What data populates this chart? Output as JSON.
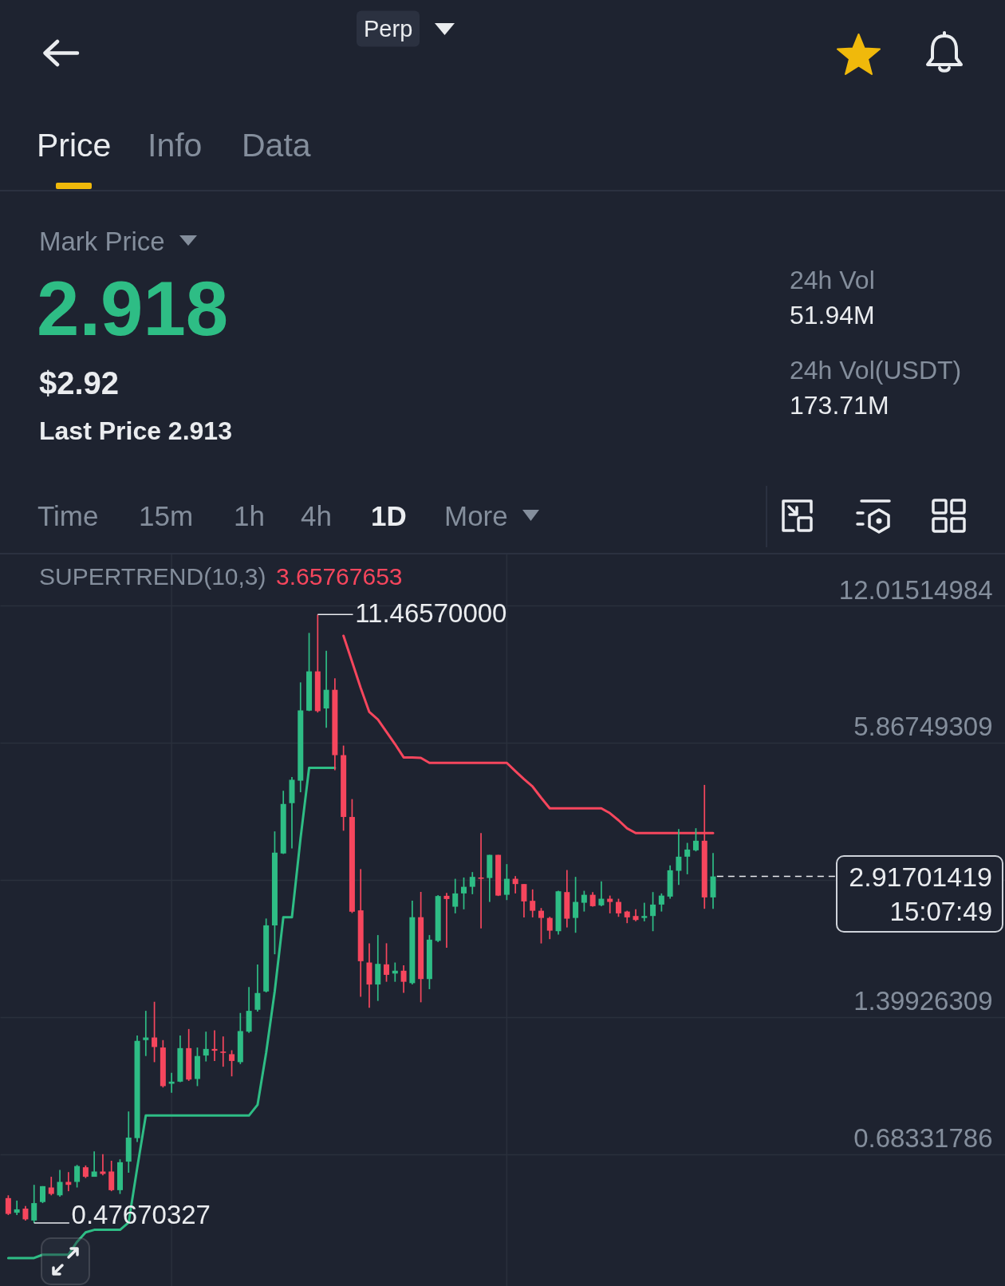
{
  "chart_data": {
    "type": "candlestick",
    "categories": [
      null,
      null,
      null,
      null,
      null,
      null,
      null,
      null,
      null,
      null,
      null,
      null,
      null,
      null,
      null,
      null,
      null,
      null,
      null,
      null,
      null,
      null,
      null,
      null,
      null,
      null,
      null,
      null,
      null,
      null,
      null,
      null,
      null,
      null,
      null,
      null,
      null,
      null,
      null,
      null,
      null,
      null,
      null,
      null,
      null,
      null,
      null,
      null,
      null,
      null,
      null,
      null,
      null,
      null,
      null,
      null,
      null,
      null,
      null,
      null,
      null,
      null,
      null,
      null,
      null,
      null,
      null,
      null,
      null,
      null,
      null,
      null,
      null,
      null,
      null,
      null,
      null,
      null,
      null,
      null,
      null,
      null,
      null,
      null,
      null,
      null,
      null,
      null,
      null,
      null,
      null,
      null,
      null,
      null,
      null,
      null,
      null,
      null,
      null,
      null,
      null,
      null,
      null,
      null,
      null,
      null,
      null,
      null,
      null,
      null,
      null,
      null,
      null,
      null,
      null,
      null
    ],
    "ohlc": [
      [
        0.543,
        0.551,
        0.497,
        0.5
      ],
      [
        0.503,
        0.536,
        0.497,
        0.512
      ],
      [
        0.514,
        0.521,
        0.483,
        0.486
      ],
      [
        0.483,
        0.582,
        0.47670327,
        0.529
      ],
      [
        0.532,
        0.578,
        0.529,
        0.578
      ],
      [
        0.574,
        0.607,
        0.551,
        0.555
      ],
      [
        0.551,
        0.629,
        0.547,
        0.591
      ],
      [
        0.591,
        0.622,
        0.563,
        0.582
      ],
      [
        0.591,
        0.646,
        0.574,
        0.642
      ],
      [
        0.638,
        0.644,
        0.603,
        0.607
      ],
      [
        0.607,
        0.693,
        0.607,
        0.624
      ],
      [
        0.624,
        0.683,
        0.612,
        0.616
      ],
      [
        0.624,
        0.66,
        0.563,
        0.566
      ],
      [
        0.566,
        0.665,
        0.555,
        0.655
      ],
      [
        0.657,
        0.854,
        0.62,
        0.745
      ],
      [
        0.743,
        1.27,
        0.728,
        1.235
      ],
      [
        1.24,
        1.445,
        1.141,
        1.257
      ],
      [
        1.257,
        1.515,
        1.105,
        1.196
      ],
      [
        1.193,
        1.24,
        0.968,
        0.975
      ],
      [
        0.987,
        1.045,
        0.942,
        0.998
      ],
      [
        0.998,
        1.27,
        0.995,
        1.189
      ],
      [
        1.189,
        1.314,
        1.002,
        1.009
      ],
      [
        1.012,
        1.193,
        0.975,
        1.141
      ],
      [
        1.144,
        1.296,
        1.109,
        1.184
      ],
      [
        1.184,
        1.305,
        1.112,
        1.173
      ],
      [
        1.168,
        1.264,
        1.079,
        1.16
      ],
      [
        1.152,
        1.176,
        1.026,
        1.112
      ],
      [
        1.105,
        1.429,
        1.094,
        1.3
      ],
      [
        1.296,
        1.637,
        1.287,
        1.445
      ],
      [
        1.453,
        1.84,
        1.439,
        1.586
      ],
      [
        1.599,
        2.341,
        1.591,
        2.259
      ],
      [
        2.258,
        3.691,
        1.942,
        3.303
      ],
      [
        3.289,
        4.564,
        3.28,
        4.26
      ],
      [
        4.278,
        4.903,
        3.376,
        4.834
      ],
      [
        4.811,
        8.042,
        4.529,
        6.947
      ],
      [
        6.938,
        10.415,
        6.92,
        8.518
      ],
      [
        8.518,
        11.4657,
        6.869,
        6.92
      ],
      [
        7.017,
        9.486,
        6.346,
        7.736
      ],
      [
        7.736,
        8.218,
        5.079,
        5.498
      ],
      [
        5.498,
        5.78,
        3.704,
        3.98
      ],
      [
        3.98,
        4.37,
        2.409,
        2.426
      ],
      [
        2.443,
        3.031,
        1.555,
        1.873
      ],
      [
        1.86,
        2.057,
        1.468,
        1.658
      ],
      [
        1.658,
        2.147,
        1.522,
        1.847
      ],
      [
        1.842,
        2.057,
        1.682,
        1.744
      ],
      [
        1.756,
        1.86,
        1.682,
        1.782
      ],
      [
        1.782,
        1.834,
        1.588,
        1.682
      ],
      [
        1.67,
        2.57,
        1.658,
        2.357
      ],
      [
        2.357,
        2.69,
        1.511,
        1.706
      ],
      [
        1.706,
        2.147,
        1.618,
        2.096
      ],
      [
        2.083,
        2.645,
        2.07,
        2.633
      ],
      [
        2.636,
        2.676,
        2.01,
        2.592
      ],
      [
        2.49,
        2.881,
        2.405,
        2.669
      ],
      [
        2.669,
        2.901,
        2.456,
        2.763
      ],
      [
        2.763,
        2.984,
        2.658,
        2.91
      ],
      [
        2.901,
        3.66,
        2.222,
        2.881
      ],
      [
        2.893,
        3.265,
        2.553,
        3.265
      ],
      [
        3.265,
        3.265,
        2.633,
        2.639
      ],
      [
        2.65,
        3.111,
        2.578,
        2.881
      ],
      [
        2.881,
        2.922,
        2.669,
        2.803
      ],
      [
        2.803,
        2.803,
        2.355,
        2.56
      ],
      [
        2.568,
        2.726,
        2.355,
        2.438
      ],
      [
        2.438,
        2.473,
        2.055,
        2.348
      ],
      [
        2.348,
        2.362,
        2.102,
        2.197
      ],
      [
        2.191,
        2.706,
        2.152,
        2.699
      ],
      [
        2.688,
        3.016,
        2.234,
        2.339
      ],
      [
        2.348,
        2.91,
        2.173,
        2.553
      ],
      [
        2.542,
        2.706,
        2.428,
        2.65
      ],
      [
        2.65,
        2.688,
        2.49,
        2.497
      ],
      [
        2.508,
        2.842,
        2.497,
        2.596
      ],
      [
        2.596,
        2.639,
        2.405,
        2.553
      ],
      [
        2.553,
        2.596,
        2.362,
        2.405
      ],
      [
        2.428,
        2.438,
        2.285,
        2.355
      ],
      [
        2.372,
        2.456,
        2.307,
        2.323
      ],
      [
        2.348,
        2.542,
        2.307,
        2.372
      ],
      [
        2.372,
        2.688,
        2.191,
        2.518
      ],
      [
        2.518,
        2.669,
        2.428,
        2.639
      ],
      [
        2.625,
        3.089,
        2.596,
        3.012
      ],
      [
        3.004,
        3.737,
        2.791,
        3.234
      ],
      [
        3.234,
        3.476,
        2.95,
        3.357
      ],
      [
        3.343,
        3.753,
        3.325,
        3.515
      ],
      [
        3.515,
        4.706,
        2.463,
        2.614
      ],
      [
        2.614,
        3.297,
        2.463,
        2.91701419
      ],
      null,
      null,
      null,
      null,
      null,
      null,
      null,
      null,
      null,
      null,
      null,
      null,
      null,
      null,
      null,
      null,
      null,
      null,
      null,
      null,
      null,
      null,
      null,
      null,
      null,
      null,
      null,
      null,
      null,
      null,
      null,
      null,
      null
    ],
    "colors": [
      "#f6465d",
      "#2ebd85",
      "#f6465d",
      "#2ebd85",
      "#2ebd85",
      "#f6465d",
      "#2ebd85",
      "#f6465d",
      "#2ebd85",
      "#f6465d",
      "#2ebd85",
      "#f6465d",
      "#f6465d",
      "#2ebd85",
      "#2ebd85",
      "#2ebd85",
      "#2ebd85",
      "#f6465d",
      "#f6465d",
      "#2ebd85",
      "#2ebd85",
      "#f6465d",
      "#2ebd85",
      "#2ebd85",
      "#f6465d",
      "#f6465d",
      "#f6465d",
      "#2ebd85",
      "#2ebd85",
      "#2ebd85",
      "#2ebd85",
      "#2ebd85",
      "#2ebd85",
      "#2ebd85",
      "#2ebd85",
      "#2ebd85",
      "#f6465d",
      "#2ebd85",
      "#f6465d",
      "#f6465d",
      "#f6465d",
      "#f6465d",
      "#f6465d",
      "#2ebd85",
      "#f6465d",
      "#2ebd85",
      "#f6465d",
      "#2ebd85",
      "#f6465d",
      "#2ebd85",
      "#2ebd85",
      "#f6465d",
      "#2ebd85",
      "#2ebd85",
      "#2ebd85",
      "#f6465d",
      "#2ebd85",
      "#f6465d",
      "#2ebd85",
      "#f6465d",
      "#f6465d",
      "#f6465d",
      "#f6465d",
      "#f6465d",
      "#2ebd85",
      "#f6465d",
      "#2ebd85",
      "#2ebd85",
      "#f6465d",
      "#2ebd85",
      "#f6465d",
      "#f6465d",
      "#f6465d",
      "#f6465d",
      "#2ebd85",
      "#2ebd85",
      "#2ebd85",
      "#2ebd85",
      "#2ebd85",
      "#2ebd85",
      "#2ebd85",
      "#f6465d",
      "#2ebd85",
      null,
      null,
      null,
      null,
      null,
      null,
      null,
      null,
      null,
      null,
      null,
      null,
      null,
      null,
      null,
      null,
      null,
      null,
      null,
      null,
      null,
      null,
      null,
      null,
      null,
      null,
      null,
      null,
      null,
      null,
      null,
      null,
      null
    ],
    "series": [
      {
        "type": "line",
        "color": "#2ebd85",
        "values": [
          0.397,
          0.397,
          0.397,
          0.397,
          0.404,
          0.404,
          0.404,
          0.404,
          0.432,
          0.454,
          0.46,
          0.46,
          0.46,
          0.46,
          0.478,
          0.636,
          0.836,
          0.836,
          0.836,
          0.836,
          0.836,
          0.836,
          0.836,
          0.836,
          0.836,
          0.836,
          0.836,
          0.836,
          0.836,
          0.884,
          1.16,
          1.601,
          2.357,
          2.357,
          3.555,
          5.145,
          5.145,
          5.145,
          5.145,
          null,
          null,
          null,
          null,
          null,
          null,
          null,
          null,
          null,
          null,
          null,
          null,
          null,
          null,
          null,
          null,
          null,
          null,
          null,
          null,
          null,
          null,
          null,
          null,
          null,
          null,
          null,
          null,
          null,
          null,
          null,
          null,
          null,
          null,
          null,
          null,
          null,
          null,
          null,
          null,
          null,
          null,
          null,
          null,
          null,
          null,
          null,
          null,
          null,
          null,
          null,
          null,
          null,
          null,
          null,
          null,
          null,
          null,
          null,
          null,
          null,
          null,
          null,
          null,
          null,
          null,
          null,
          null,
          null,
          null,
          null,
          null,
          null,
          null,
          null,
          null,
          null
        ]
      },
      {
        "type": "line",
        "color": "#f6465d",
        "values": [
          null,
          null,
          null,
          null,
          null,
          null,
          null,
          null,
          null,
          null,
          null,
          null,
          null,
          null,
          null,
          null,
          null,
          null,
          null,
          null,
          null,
          null,
          null,
          null,
          null,
          null,
          null,
          null,
          null,
          null,
          null,
          null,
          null,
          null,
          null,
          null,
          null,
          null,
          null,
          10.26,
          8.955,
          7.812,
          6.889,
          6.627,
          6.212,
          5.823,
          5.434,
          5.434,
          5.42,
          5.28,
          5.28,
          5.28,
          5.28,
          5.28,
          5.28,
          5.28,
          5.28,
          5.28,
          5.28,
          5.056,
          4.85,
          4.665,
          4.4,
          4.163,
          4.163,
          4.163,
          4.163,
          4.163,
          4.163,
          4.163,
          4.06,
          3.911,
          3.75,
          3.658,
          3.658,
          3.658,
          3.658,
          3.658,
          3.658,
          3.658,
          3.658,
          3.658,
          3.658,
          null,
          null,
          null,
          null,
          null,
          null,
          null,
          null,
          null,
          null,
          null,
          null,
          null,
          null,
          null,
          null,
          null,
          null,
          null,
          null,
          null,
          null,
          null,
          null,
          null,
          null,
          null,
          null,
          null,
          null,
          null,
          null,
          null
        ]
      }
    ],
    "ylim": [
      0.343,
      15.76
    ],
    "yticks": [
      12.01514984,
      5.86749309,
      {
        "value": 2.86533882,
        "label": null
      },
      1.39926309,
      0.68331786
    ],
    "log": true,
    "grid": "y",
    "tick_labels": "y",
    "ref_lines": [
      {
        "axis": "y",
        "value": 2.91701419,
        "label": "2.91701419",
        "line_style": "dashed",
        "color": "#eaecef"
      }
    ],
    "annotations": [
      "Perp",
      "Price",
      "Info",
      "Data",
      "Mark Price",
      "2.918",
      "$2.92",
      "Last Price 2.913",
      "24h Vol",
      "51.94M",
      "24h Vol(USDT)",
      "173.71M",
      "Time",
      "15m",
      "1h",
      "4h",
      "1D",
      "More",
      "SUPERTREND(10,3)",
      "3.65767653",
      "11.46570000",
      "0.47670327",
      "15:07:49"
    ]
  }
}
